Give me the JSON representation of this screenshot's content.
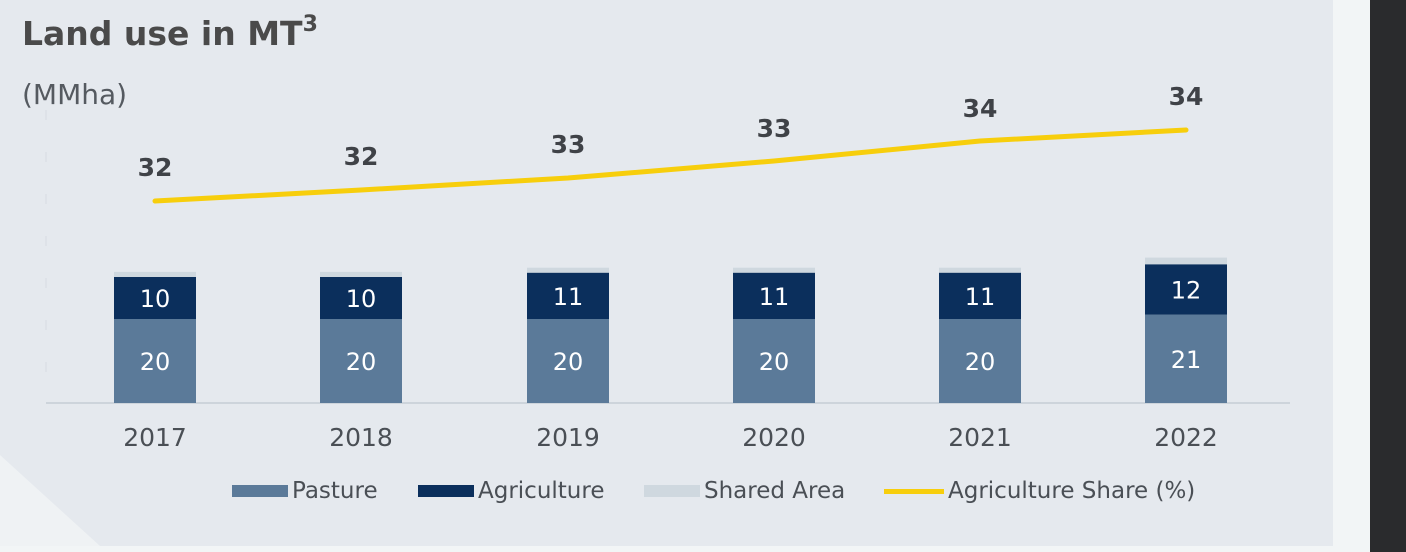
{
  "title": "Land use in MT",
  "title_superscript": "3",
  "unit_label": "(MMha)",
  "chart_data": {
    "type": "bar",
    "stacked": true,
    "categories": [
      "2017",
      "2018",
      "2019",
      "2020",
      "2021",
      "2022"
    ],
    "series": [
      {
        "name": "Pasture",
        "kind": "bar",
        "values": [
          20,
          20,
          20,
          20,
          20,
          21
        ],
        "color": "#5b7a99"
      },
      {
        "name": "Agriculture",
        "kind": "bar",
        "values": [
          10,
          10,
          11,
          11,
          11,
          12
        ],
        "color": "#0b2f5c"
      },
      {
        "name": "Shared Area",
        "kind": "bar",
        "values": [
          0.5,
          0.5,
          0.5,
          0.5,
          0.5,
          0.9
        ],
        "color": "#cfd8df"
      },
      {
        "name": "Agriculture Share (%)",
        "kind": "line",
        "values": [
          32,
          32,
          33,
          33,
          34,
          34
        ],
        "color": "#f7ce0c"
      }
    ],
    "legend": [
      "Pasture",
      "Agriculture",
      "Shared Area",
      "Agriculture Share (%)"
    ],
    "legend_position": "bottom",
    "grid": false
  }
}
